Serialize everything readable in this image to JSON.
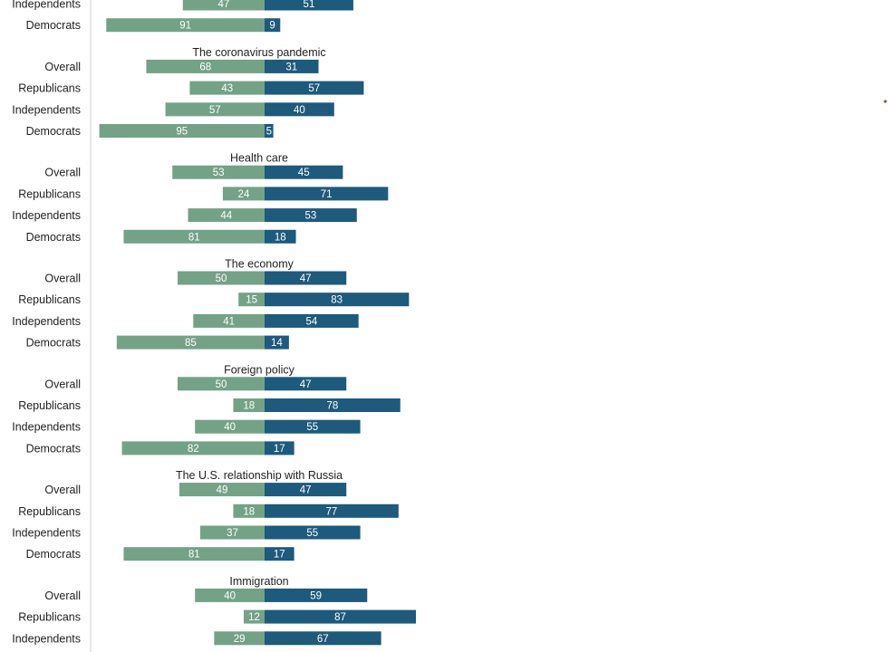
{
  "chart_data": {
    "type": "bar",
    "orientation": "horizontal-diverging",
    "colors": {
      "left": "#73a287",
      "right": "#1d5a7c",
      "axis": "#d0d0d0",
      "text": "#222222",
      "bar_text": "#ffffff",
      "accent_dot": "#c0392b"
    },
    "groups": [
      {
        "title": "",
        "rows": [
          {
            "label": "Independents",
            "left": 47,
            "right": 51
          },
          {
            "label": "Democrats",
            "left": 91,
            "right": 9
          }
        ]
      },
      {
        "title": "The coronavirus pandemic",
        "rows": [
          {
            "label": "Overall",
            "left": 68,
            "right": 31
          },
          {
            "label": "Republicans",
            "left": 43,
            "right": 57
          },
          {
            "label": "Independents",
            "left": 57,
            "right": 40
          },
          {
            "label": "Democrats",
            "left": 95,
            "right": 5
          }
        ]
      },
      {
        "title": "Health care",
        "rows": [
          {
            "label": "Overall",
            "left": 53,
            "right": 45
          },
          {
            "label": "Republicans",
            "left": 24,
            "right": 71
          },
          {
            "label": "Independents",
            "left": 44,
            "right": 53
          },
          {
            "label": "Democrats",
            "left": 81,
            "right": 18
          }
        ]
      },
      {
        "title": "The economy",
        "rows": [
          {
            "label": "Overall",
            "left": 50,
            "right": 47
          },
          {
            "label": "Republicans",
            "left": 15,
            "right": 83
          },
          {
            "label": "Independents",
            "left": 41,
            "right": 54
          },
          {
            "label": "Democrats",
            "left": 85,
            "right": 14
          }
        ]
      },
      {
        "title": "Foreign policy",
        "rows": [
          {
            "label": "Overall",
            "left": 50,
            "right": 47
          },
          {
            "label": "Republicans",
            "left": 18,
            "right": 78
          },
          {
            "label": "Independents",
            "left": 40,
            "right": 55
          },
          {
            "label": "Democrats",
            "left": 82,
            "right": 17
          }
        ]
      },
      {
        "title": "The U.S. relationship with Russia",
        "rows": [
          {
            "label": "Overall",
            "left": 49,
            "right": 47
          },
          {
            "label": "Republicans",
            "left": 18,
            "right": 77
          },
          {
            "label": "Independents",
            "left": 37,
            "right": 55
          },
          {
            "label": "Democrats",
            "left": 81,
            "right": 17
          }
        ]
      },
      {
        "title": "Immigration",
        "rows": [
          {
            "label": "Overall",
            "left": 40,
            "right": 59
          },
          {
            "label": "Republicans",
            "left": 12,
            "right": 87
          },
          {
            "label": "Independents",
            "left": 29,
            "right": 67
          }
        ]
      }
    ]
  }
}
